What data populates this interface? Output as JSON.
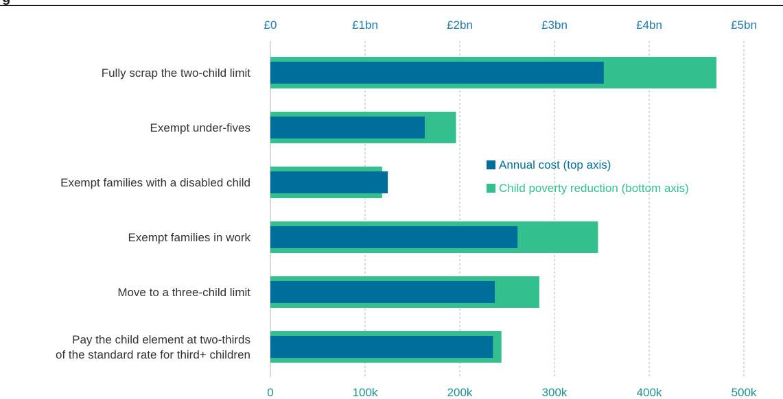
{
  "chart_data": {
    "type": "bar",
    "title_fragment": "g",
    "categories": [
      [
        "Fully scrap the two-child limit"
      ],
      [
        "Exempt under-fives"
      ],
      [
        "Exempt families with a disabled child"
      ],
      [
        "Exempt families in work"
      ],
      [
        "Move to a three-child limit"
      ],
      [
        "Pay the child element at two-thirds",
        "of the standard rate for third+ children"
      ]
    ],
    "series": [
      {
        "name": "Annual cost (top axis)",
        "axis": "top",
        "unit": "£bn",
        "color": "#006e9a",
        "values": [
          3.52,
          1.63,
          1.24,
          2.61,
          2.37,
          2.35
        ]
      },
      {
        "name": "Child poverty reduction (bottom axis)",
        "axis": "bottom",
        "unit": "children",
        "color": "#33c08e",
        "values": [
          471000,
          196000,
          118000,
          346000,
          284000,
          244000
        ]
      }
    ],
    "top_axis": {
      "ticks": [
        "£0",
        "£1bn",
        "£2bn",
        "£3bn",
        "£4bn",
        "£5bn"
      ],
      "range": [
        0,
        5
      ],
      "color": "#1f7ab0"
    },
    "bottom_axis": {
      "ticks": [
        "0",
        "100k",
        "200k",
        "300k",
        "400k",
        "500k"
      ],
      "range": [
        0,
        500000
      ],
      "color": "#1e8f8a"
    },
    "grid": true,
    "legend": "middle-right"
  }
}
